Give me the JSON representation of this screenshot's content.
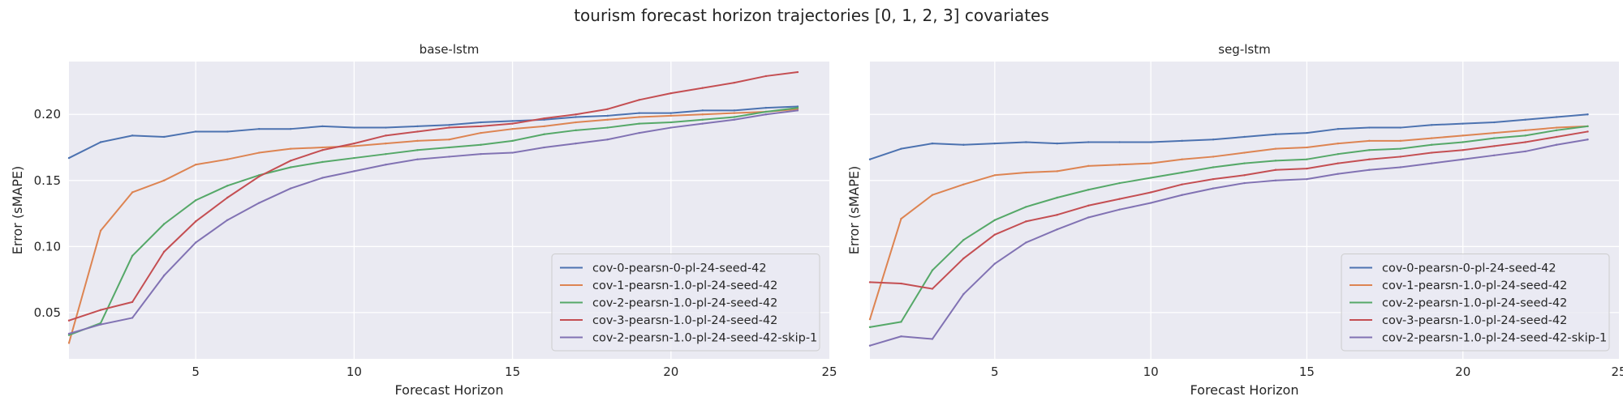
{
  "suptitle": "tourism forecast horizon trajectories [0, 1, 2, 3] covariates",
  "colors": {
    "background": "#ffffff",
    "plot_background": "#eaeaf2",
    "grid": "#ffffff",
    "text": "#262626"
  },
  "chart_data": [
    {
      "type": "line",
      "title": "base-lstm",
      "xlabel": "Forecast Horizon",
      "ylabel": "Error (sMAPE)",
      "xlim": [
        1,
        25
      ],
      "ylim": [
        0.015,
        0.24
      ],
      "xticks": [
        5,
        10,
        15,
        20,
        25
      ],
      "yticks": [
        0.05,
        0.1,
        0.15,
        0.2
      ],
      "ytick_labels": [
        "0.05",
        "0.10",
        "0.15",
        "0.20"
      ],
      "grid": true,
      "legend_position": "lower-right",
      "x": [
        1,
        2,
        3,
        4,
        5,
        6,
        7,
        8,
        9,
        10,
        11,
        12,
        13,
        14,
        15,
        16,
        17,
        18,
        19,
        20,
        21,
        22,
        23,
        24
      ],
      "series": [
        {
          "name": "cov-0-pearsn-0-pl-24-seed-42",
          "color": "#4c72b0",
          "values": [
            0.167,
            0.179,
            0.184,
            0.183,
            0.187,
            0.187,
            0.189,
            0.189,
            0.191,
            0.19,
            0.19,
            0.191,
            0.192,
            0.194,
            0.195,
            0.196,
            0.198,
            0.199,
            0.201,
            0.201,
            0.203,
            0.203,
            0.205,
            0.206
          ]
        },
        {
          "name": "cov-1-pearsn-1.0-pl-24-seed-42",
          "color": "#dd8452",
          "values": [
            0.027,
            0.112,
            0.141,
            0.15,
            0.162,
            0.166,
            0.171,
            0.174,
            0.175,
            0.176,
            0.178,
            0.18,
            0.181,
            0.186,
            0.189,
            0.191,
            0.194,
            0.196,
            0.198,
            0.199,
            0.2,
            0.201,
            0.202,
            0.204
          ]
        },
        {
          "name": "cov-2-pearsn-1.0-pl-24-seed-42",
          "color": "#55a868",
          "values": [
            0.033,
            0.042,
            0.093,
            0.117,
            0.135,
            0.146,
            0.154,
            0.16,
            0.164,
            0.167,
            0.17,
            0.173,
            0.175,
            0.177,
            0.18,
            0.185,
            0.188,
            0.19,
            0.193,
            0.194,
            0.196,
            0.198,
            0.202,
            0.205
          ]
        },
        {
          "name": "cov-3-pearsn-1.0-pl-24-seed-42",
          "color": "#c44e52",
          "values": [
            0.044,
            0.052,
            0.058,
            0.096,
            0.119,
            0.137,
            0.153,
            0.165,
            0.173,
            0.178,
            0.184,
            0.187,
            0.19,
            0.191,
            0.193,
            0.197,
            0.2,
            0.204,
            0.211,
            0.216,
            0.22,
            0.224,
            0.229,
            0.232
          ]
        },
        {
          "name": "cov-2-pearsn-1.0-pl-24-seed-42-skip-1",
          "color": "#8172b3",
          "values": [
            0.034,
            0.041,
            0.046,
            0.078,
            0.103,
            0.12,
            0.133,
            0.144,
            0.152,
            0.157,
            0.162,
            0.166,
            0.168,
            0.17,
            0.171,
            0.175,
            0.178,
            0.181,
            0.186,
            0.19,
            0.193,
            0.196,
            0.2,
            0.203
          ]
        }
      ]
    },
    {
      "type": "line",
      "title": "seg-lstm",
      "xlabel": "Forecast Horizon",
      "ylabel": "Error (sMAPE)",
      "xlim": [
        1,
        25
      ],
      "ylim": [
        0.015,
        0.24
      ],
      "xticks": [
        5,
        10,
        15,
        20,
        25
      ],
      "yticks": [
        0.05,
        0.1,
        0.15,
        0.2
      ],
      "ytick_labels": [],
      "grid": true,
      "legend_position": "lower-right",
      "x": [
        1,
        2,
        3,
        4,
        5,
        6,
        7,
        8,
        9,
        10,
        11,
        12,
        13,
        14,
        15,
        16,
        17,
        18,
        19,
        20,
        21,
        22,
        23,
        24
      ],
      "series": [
        {
          "name": "cov-0-pearsn-0-pl-24-seed-42",
          "color": "#4c72b0",
          "values": [
            0.166,
            0.174,
            0.178,
            0.177,
            0.178,
            0.179,
            0.178,
            0.179,
            0.179,
            0.179,
            0.18,
            0.181,
            0.183,
            0.185,
            0.186,
            0.189,
            0.19,
            0.19,
            0.192,
            0.193,
            0.194,
            0.196,
            0.198,
            0.2
          ]
        },
        {
          "name": "cov-1-pearsn-1.0-pl-24-seed-42",
          "color": "#dd8452",
          "values": [
            0.045,
            0.121,
            0.139,
            0.147,
            0.154,
            0.156,
            0.157,
            0.161,
            0.162,
            0.163,
            0.166,
            0.168,
            0.171,
            0.174,
            0.175,
            0.178,
            0.18,
            0.18,
            0.182,
            0.184,
            0.186,
            0.188,
            0.19,
            0.191
          ]
        },
        {
          "name": "cov-2-pearsn-1.0-pl-24-seed-42",
          "color": "#55a868",
          "values": [
            0.039,
            0.043,
            0.082,
            0.105,
            0.12,
            0.13,
            0.137,
            0.143,
            0.148,
            0.152,
            0.156,
            0.16,
            0.163,
            0.165,
            0.166,
            0.17,
            0.173,
            0.174,
            0.177,
            0.179,
            0.182,
            0.184,
            0.188,
            0.191
          ]
        },
        {
          "name": "cov-3-pearsn-1.0-pl-24-seed-42",
          "color": "#c44e52",
          "values": [
            0.073,
            0.072,
            0.068,
            0.091,
            0.109,
            0.119,
            0.124,
            0.131,
            0.136,
            0.141,
            0.147,
            0.151,
            0.154,
            0.158,
            0.159,
            0.163,
            0.166,
            0.168,
            0.171,
            0.173,
            0.176,
            0.179,
            0.183,
            0.187
          ]
        },
        {
          "name": "cov-2-pearsn-1.0-pl-24-seed-42-skip-1",
          "color": "#8172b3",
          "values": [
            0.025,
            0.032,
            0.03,
            0.064,
            0.087,
            0.103,
            0.113,
            0.122,
            0.128,
            0.133,
            0.139,
            0.144,
            0.148,
            0.15,
            0.151,
            0.155,
            0.158,
            0.16,
            0.163,
            0.166,
            0.169,
            0.172,
            0.177,
            0.181
          ]
        }
      ]
    }
  ]
}
